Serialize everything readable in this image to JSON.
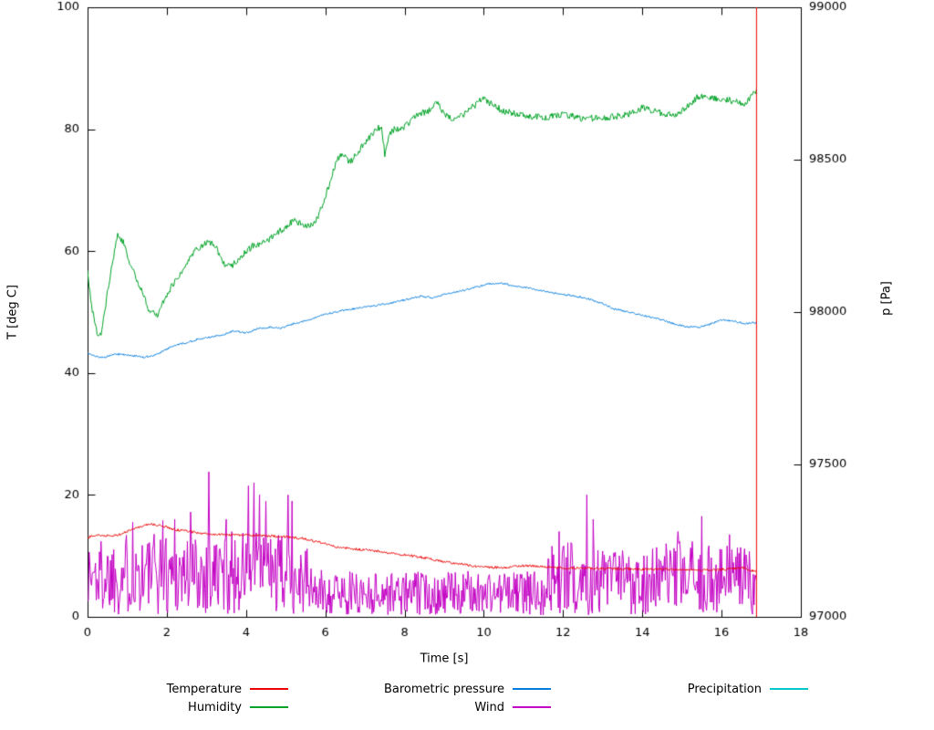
{
  "chart_data": {
    "type": "line",
    "title": "",
    "xlabel": "Time [s]",
    "ylabel": "T [deg C]",
    "y2label": "p [Pa]",
    "xlim": [
      0,
      18
    ],
    "ylim": [
      0,
      100
    ],
    "y2lim": [
      97000,
      99000
    ],
    "xticks": [
      0,
      2,
      4,
      6,
      8,
      10,
      12,
      14,
      16,
      18
    ],
    "yticks": [
      0,
      20,
      40,
      60,
      80,
      100
    ],
    "y2ticks": [
      97000,
      97500,
      98000,
      98500,
      99000
    ],
    "grid": false,
    "legend_position": "below",
    "background": "#ffffff",
    "axis_color": "#000000",
    "seed": 1337,
    "dt": 0.02,
    "t_end": 16.87,
    "series": [
      {
        "name": "Temperature",
        "color": "#ee0000",
        "axis": "y1",
        "noise": 0.2,
        "anchors": [
          [
            0,
            13.0
          ],
          [
            0.2,
            13.4
          ],
          [
            0.5,
            13.3
          ],
          [
            0.8,
            13.5
          ],
          [
            1.1,
            14.2
          ],
          [
            1.4,
            15.0
          ],
          [
            1.6,
            15.2
          ],
          [
            1.9,
            14.9
          ],
          [
            2.2,
            14.3
          ],
          [
            2.5,
            14.1
          ],
          [
            2.8,
            13.8
          ],
          [
            3.1,
            13.6
          ],
          [
            3.5,
            13.5
          ],
          [
            4.0,
            13.4
          ],
          [
            4.5,
            13.3
          ],
          [
            5.0,
            13.1
          ],
          [
            5.4,
            12.9
          ],
          [
            5.8,
            12.3
          ],
          [
            6.2,
            11.6
          ],
          [
            6.6,
            11.2
          ],
          [
            7.0,
            11.0
          ],
          [
            7.4,
            10.7
          ],
          [
            7.8,
            10.3
          ],
          [
            8.2,
            10.0
          ],
          [
            8.6,
            9.6
          ],
          [
            9.0,
            9.0
          ],
          [
            9.4,
            8.7
          ],
          [
            9.8,
            8.3
          ],
          [
            10.2,
            8.1
          ],
          [
            10.6,
            8.1
          ],
          [
            11.0,
            8.4
          ],
          [
            11.4,
            8.3
          ],
          [
            12.0,
            8.0
          ],
          [
            12.6,
            8.0
          ],
          [
            13.2,
            7.9
          ],
          [
            14.0,
            7.8
          ],
          [
            14.8,
            7.8
          ],
          [
            15.6,
            7.7
          ],
          [
            16.2,
            7.8
          ],
          [
            16.5,
            8.1
          ],
          [
            16.87,
            7.4
          ]
        ],
        "end_spike": {
          "t": 16.87,
          "y0": 0,
          "y1": 100
        }
      },
      {
        "name": "Humidity",
        "color": "#00a326",
        "axis": "y1",
        "noise": 0.55,
        "anchors": [
          [
            0,
            56.5
          ],
          [
            0.1,
            51
          ],
          [
            0.25,
            46
          ],
          [
            0.35,
            46.5
          ],
          [
            0.5,
            53
          ],
          [
            0.65,
            59
          ],
          [
            0.75,
            62.5
          ],
          [
            0.9,
            61.5
          ],
          [
            1.05,
            58.5
          ],
          [
            1.3,
            54.5
          ],
          [
            1.55,
            50.5
          ],
          [
            1.75,
            49.5
          ],
          [
            1.9,
            51.5
          ],
          [
            2.1,
            54
          ],
          [
            2.4,
            57
          ],
          [
            2.7,
            60
          ],
          [
            3.0,
            61.5
          ],
          [
            3.2,
            61
          ],
          [
            3.45,
            58
          ],
          [
            3.6,
            57.5
          ],
          [
            3.8,
            58.5
          ],
          [
            4.0,
            60
          ],
          [
            4.2,
            61
          ],
          [
            4.5,
            61.5
          ],
          [
            4.8,
            63
          ],
          [
            5.0,
            64
          ],
          [
            5.2,
            65
          ],
          [
            5.4,
            64.5
          ],
          [
            5.6,
            64
          ],
          [
            5.8,
            65.5
          ],
          [
            6.0,
            69
          ],
          [
            6.15,
            72
          ],
          [
            6.3,
            75
          ],
          [
            6.45,
            76
          ],
          [
            6.6,
            74.5
          ],
          [
            6.75,
            75.5
          ],
          [
            6.9,
            77
          ],
          [
            7.1,
            78.5
          ],
          [
            7.3,
            80
          ],
          [
            7.42,
            80.5
          ],
          [
            7.5,
            76
          ],
          [
            7.6,
            79
          ],
          [
            7.75,
            80
          ],
          [
            7.9,
            80
          ],
          [
            8.1,
            81
          ],
          [
            8.35,
            82.5
          ],
          [
            8.6,
            83
          ],
          [
            8.8,
            84.5
          ],
          [
            9.0,
            82.5
          ],
          [
            9.2,
            81.5
          ],
          [
            9.5,
            82.5
          ],
          [
            9.8,
            84
          ],
          [
            10.0,
            85.2
          ],
          [
            10.2,
            84
          ],
          [
            10.5,
            83
          ],
          [
            10.8,
            82.5
          ],
          [
            11.2,
            82
          ],
          [
            11.6,
            82
          ],
          [
            12.0,
            82.5
          ],
          [
            12.4,
            81.8
          ],
          [
            12.8,
            81.8
          ],
          [
            13.2,
            82
          ],
          [
            13.6,
            82.3
          ],
          [
            14.0,
            83.5
          ],
          [
            14.2,
            83.2
          ],
          [
            14.5,
            82.6
          ],
          [
            14.8,
            82.4
          ],
          [
            15.1,
            83.5
          ],
          [
            15.4,
            85.4
          ],
          [
            15.7,
            85.2
          ],
          [
            16.0,
            85
          ],
          [
            16.3,
            84.6
          ],
          [
            16.6,
            84.2
          ],
          [
            16.87,
            86.2
          ]
        ]
      },
      {
        "name": "Barometric pressure",
        "color": "#007ce0",
        "axis": "y2",
        "noise": 3,
        "anchors": [
          [
            0,
            97865
          ],
          [
            0.2,
            97855
          ],
          [
            0.4,
            97850
          ],
          [
            0.7,
            97862
          ],
          [
            1.0,
            97860
          ],
          [
            1.4,
            97852
          ],
          [
            1.7,
            97858
          ],
          [
            2.0,
            97878
          ],
          [
            2.2,
            97892
          ],
          [
            2.5,
            97900
          ],
          [
            2.8,
            97912
          ],
          [
            3.1,
            97918
          ],
          [
            3.4,
            97925
          ],
          [
            3.7,
            97938
          ],
          [
            4.0,
            97932
          ],
          [
            4.3,
            97945
          ],
          [
            4.6,
            97950
          ],
          [
            4.9,
            97948
          ],
          [
            5.2,
            97962
          ],
          [
            5.6,
            97975
          ],
          [
            6.0,
            97992
          ],
          [
            6.4,
            98005
          ],
          [
            6.8,
            98012
          ],
          [
            7.2,
            98020
          ],
          [
            7.6,
            98028
          ],
          [
            8.0,
            98040
          ],
          [
            8.4,
            98052
          ],
          [
            8.7,
            98048
          ],
          [
            9.0,
            98058
          ],
          [
            9.4,
            98068
          ],
          [
            9.8,
            98082
          ],
          [
            10.1,
            98092
          ],
          [
            10.4,
            98096
          ],
          [
            10.7,
            98088
          ],
          [
            11.0,
            98082
          ],
          [
            11.4,
            98072
          ],
          [
            11.8,
            98062
          ],
          [
            12.2,
            98055
          ],
          [
            12.6,
            98045
          ],
          [
            13.0,
            98028
          ],
          [
            13.3,
            98010
          ],
          [
            13.6,
            98002
          ],
          [
            14.0,
            97990
          ],
          [
            14.4,
            97978
          ],
          [
            14.8,
            97962
          ],
          [
            15.1,
            97952
          ],
          [
            15.4,
            97950
          ],
          [
            15.7,
            97960
          ],
          [
            16.0,
            97974
          ],
          [
            16.3,
            97970
          ],
          [
            16.6,
            97962
          ],
          [
            16.87,
            97966
          ]
        ]
      },
      {
        "name": "Wind",
        "color": "#c400c4",
        "axis": "y1",
        "style": "noise-band",
        "min": 0.3,
        "envelope": [
          [
            0,
            13
          ],
          [
            0.5,
            13.5
          ],
          [
            1,
            14
          ],
          [
            2,
            14
          ],
          [
            2.5,
            14
          ],
          [
            3,
            14
          ],
          [
            3.5,
            14
          ],
          [
            4,
            14.5
          ],
          [
            4.6,
            13.5
          ],
          [
            5,
            13.5
          ],
          [
            5.5,
            12
          ],
          [
            5.7,
            8
          ],
          [
            6,
            7.5
          ],
          [
            7,
            7.5
          ],
          [
            8,
            7.5
          ],
          [
            9,
            7.5
          ],
          [
            10,
            7.5
          ],
          [
            11,
            7.5
          ],
          [
            11.4,
            8
          ],
          [
            11.7,
            12
          ],
          [
            12,
            12.5
          ],
          [
            12.5,
            12.5
          ],
          [
            13,
            11.5
          ],
          [
            14,
            11.5
          ],
          [
            15,
            12.5
          ],
          [
            16,
            12
          ],
          [
            16.87,
            12
          ]
        ],
        "spikes": [
          [
            1.15,
            15.5
          ],
          [
            1.9,
            15.8
          ],
          [
            2.2,
            16
          ],
          [
            2.6,
            17.2
          ],
          [
            3.05,
            23.8
          ],
          [
            3.5,
            16
          ],
          [
            4.05,
            21.5
          ],
          [
            4.2,
            22
          ],
          [
            4.35,
            20
          ],
          [
            4.5,
            19
          ],
          [
            5.05,
            20
          ],
          [
            5.15,
            19
          ],
          [
            11.9,
            14
          ],
          [
            12.6,
            20
          ],
          [
            12.75,
            16
          ],
          [
            14.9,
            14
          ],
          [
            15.5,
            16.5
          ],
          [
            16.2,
            13.5
          ]
        ]
      },
      {
        "name": "Precipitation",
        "color": "#00c8c8",
        "axis": "y1",
        "noise": 0,
        "anchors": []
      }
    ]
  }
}
